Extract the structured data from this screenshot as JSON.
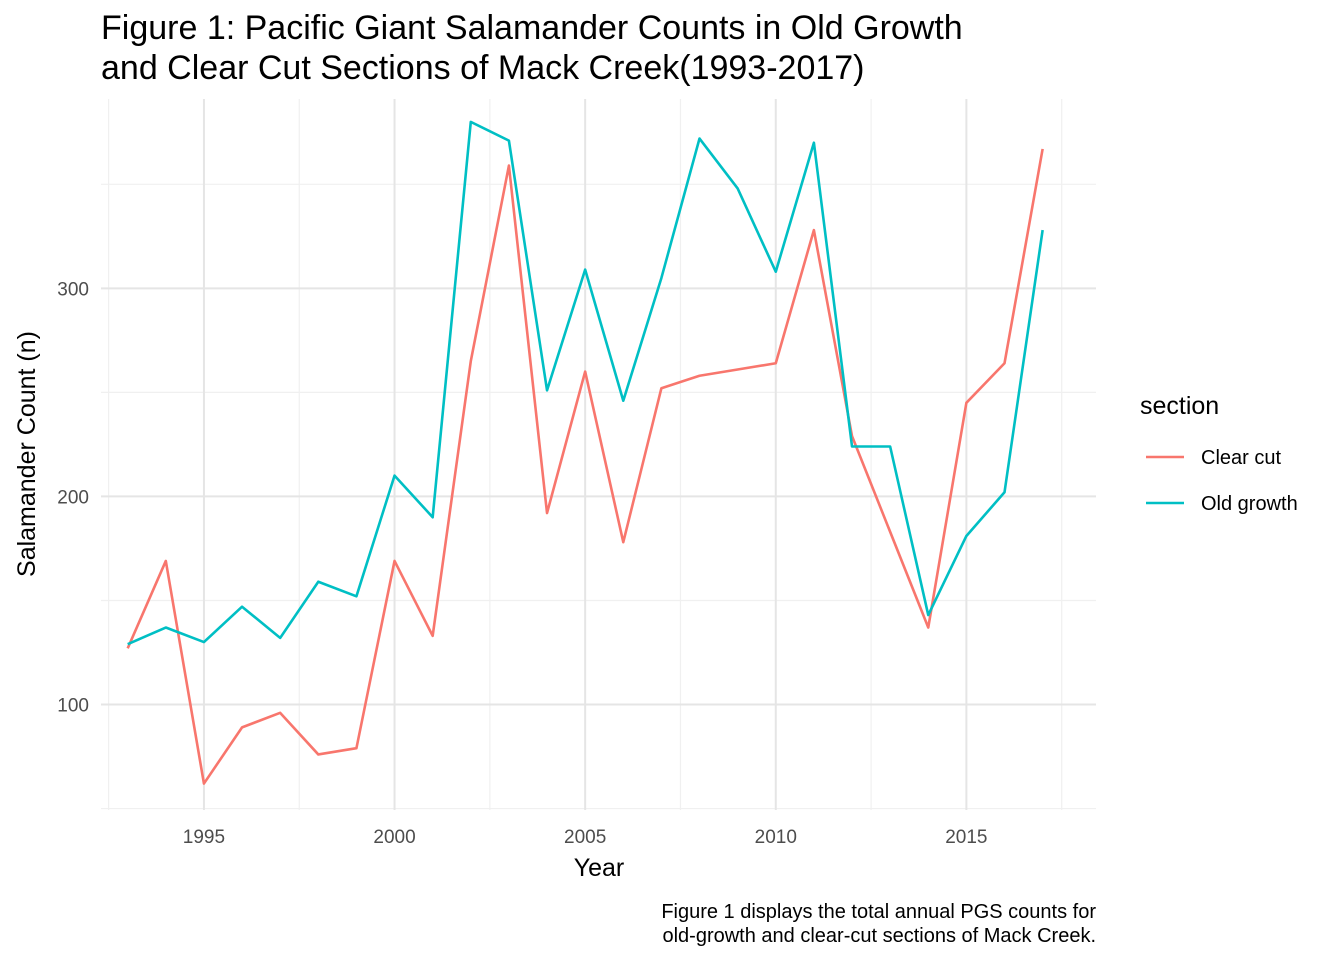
{
  "chart_data": {
    "type": "line",
    "title_lines": [
      "Figure 1: Pacific Giant Salamander Counts in Old Growth",
      "and Clear Cut Sections of Mack Creek(1993-2017)"
    ],
    "xlabel": "Year",
    "ylabel": "Salamander Count (n)",
    "caption_lines": [
      "Figure 1 displays the total annual PGS counts for",
      "old-growth and clear-cut sections of Mack Creek."
    ],
    "x": [
      1993,
      1994,
      1995,
      1996,
      1997,
      1998,
      1999,
      2000,
      2001,
      2002,
      2003,
      2004,
      2005,
      2006,
      2007,
      2008,
      2009,
      2010,
      2011,
      2012,
      2013,
      2014,
      2015,
      2016,
      2017
    ],
    "series": [
      {
        "name": "Clear cut",
        "color": "#F8766D",
        "values": [
          127,
          169,
          62,
          89,
          96,
          76,
          79,
          169,
          133,
          265,
          359,
          192,
          260,
          178,
          252,
          258,
          261,
          264,
          328,
          229,
          null,
          137,
          245,
          264,
          367
        ]
      },
      {
        "name": "Old growth",
        "color": "#00BFC4",
        "values": [
          129,
          137,
          130,
          147,
          132,
          159,
          152,
          210,
          190,
          380,
          371,
          251,
          309,
          246,
          305,
          372,
          348,
          308,
          370,
          224,
          224,
          143,
          181,
          202,
          328
        ]
      }
    ],
    "xlim": [
      1992.3,
      2018.4
    ],
    "ylim": [
      49.3,
      391
    ],
    "x_ticks": [
      1995,
      2000,
      2005,
      2010,
      2015
    ],
    "y_ticks": [
      100,
      200,
      300
    ],
    "grid": true,
    "legend": {
      "title": "section",
      "position": "right"
    }
  }
}
